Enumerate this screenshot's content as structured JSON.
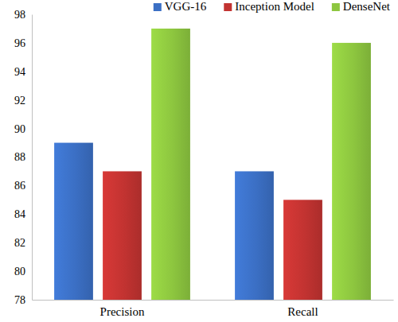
{
  "chart_data": {
    "type": "bar",
    "categories": [
      "Precision",
      "Recall"
    ],
    "series": [
      {
        "name": "VGG-16",
        "color": "#3b6fc4",
        "values": [
          89,
          87
        ]
      },
      {
        "name": "Inception Model",
        "color": "#c23331",
        "values": [
          87,
          85
        ]
      },
      {
        "name": "DenseNet",
        "color": "#8dc63f",
        "values": [
          97,
          96
        ]
      }
    ],
    "ylim": [
      78,
      98
    ],
    "yticks": [
      78,
      80,
      82,
      84,
      86,
      88,
      90,
      92,
      94,
      96,
      98
    ],
    "grid": false,
    "legend": "top"
  }
}
